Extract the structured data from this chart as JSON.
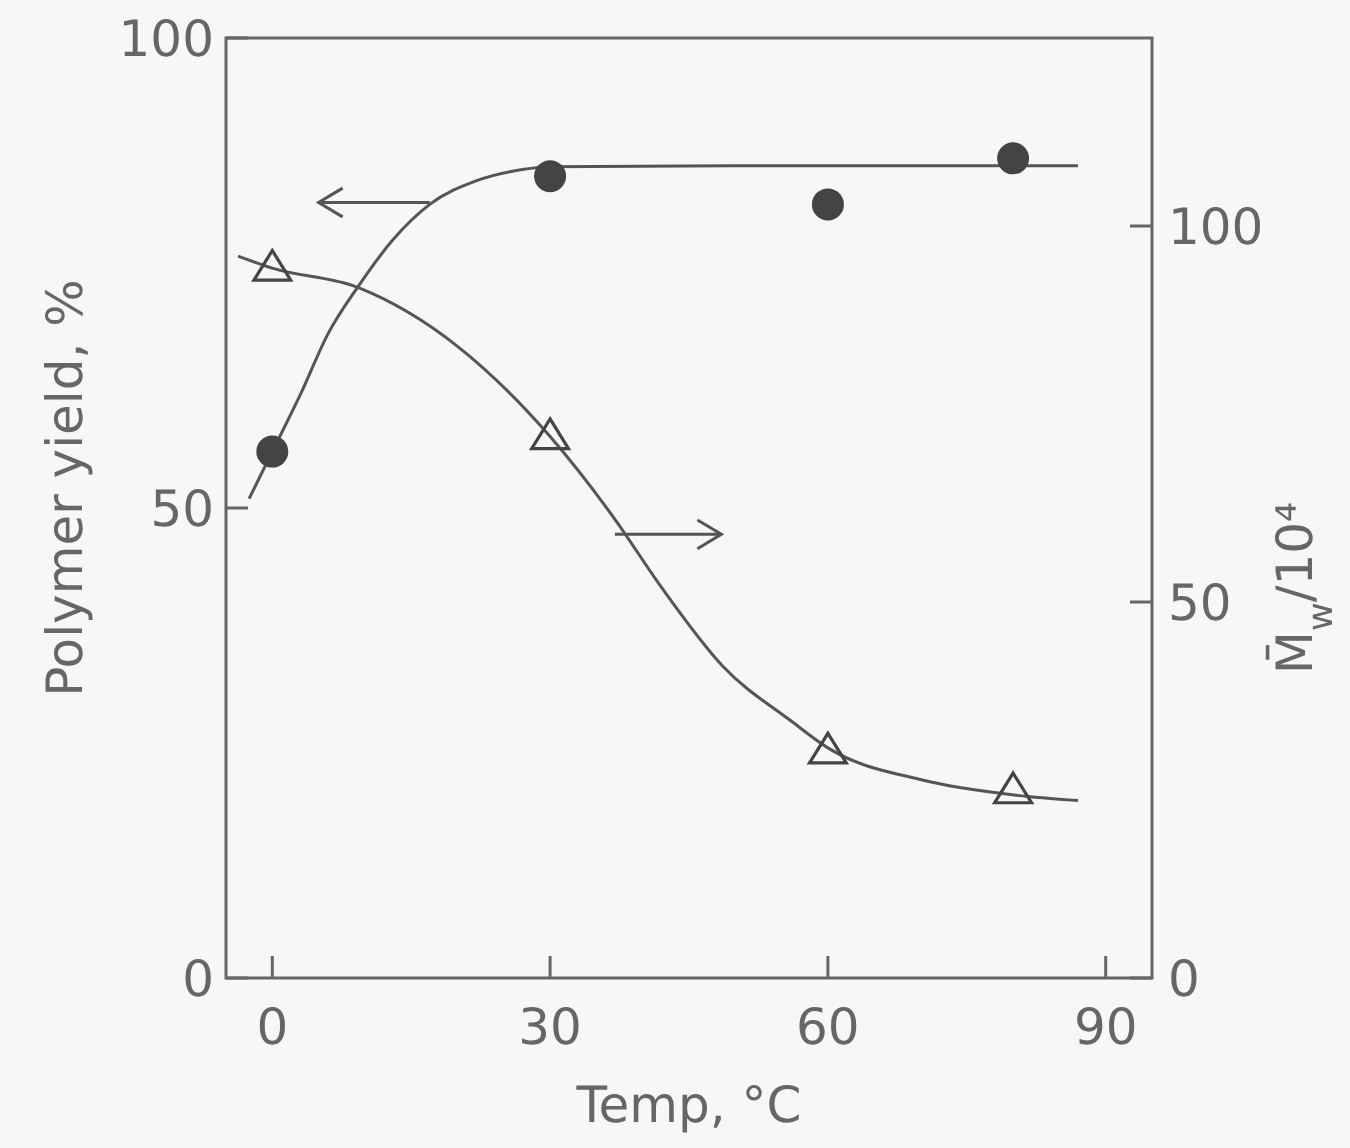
{
  "chart_data": {
    "type": "scatter",
    "xlabel": "Temp, °C",
    "ylabel": "Polymer yield, %",
    "y2label": "M̄$_{w}$/10⁴",
    "xlim": [
      -5,
      95
    ],
    "xticks": [
      0,
      30,
      60,
      90
    ],
    "ylim": [
      0,
      100
    ],
    "yticks": [
      0,
      50,
      100
    ],
    "y2lim": [
      0,
      125
    ],
    "y2ticks": [
      0,
      50,
      100
    ],
    "grid": false,
    "series": [
      {
        "type": "line",
        "color": "#555555",
        "marker": "none",
        "x": [
          -2.5,
          0,
          3,
          6,
          9.3,
          13,
          17,
          22,
          27,
          30,
          50,
          87
        ],
        "values": [
          51,
          56,
          62,
          68.5,
          73.6,
          78.5,
          82.3,
          84.8,
          86,
          86.3,
          86.4,
          86.4
        ]
      },
      {
        "type": "line",
        "axis": "y2",
        "color": "#555555",
        "marker": "none",
        "x": [
          -3.7,
          0,
          9.3,
          20,
          30,
          37,
          42,
          48.7,
          56,
          60,
          70.3,
          79.7,
          87
        ],
        "values": [
          96,
          94.4,
          91.8,
          84,
          72,
          61,
          52,
          41.4,
          34.2,
          30.6,
          26.3,
          24.4,
          23.6
        ]
      },
      {
        "color": "#444444",
        "marker": "circle",
        "x": [
          0,
          30,
          60,
          80
        ],
        "values": [
          56,
          85.3,
          82.3,
          87.2
        ]
      },
      {
        "axis": "y2",
        "color": "#444444",
        "marker": "triangle",
        "x": [
          0,
          30,
          60,
          80
        ],
        "values": [
          94.4,
          72,
          30.2,
          24.9
        ]
      }
    ]
  }
}
